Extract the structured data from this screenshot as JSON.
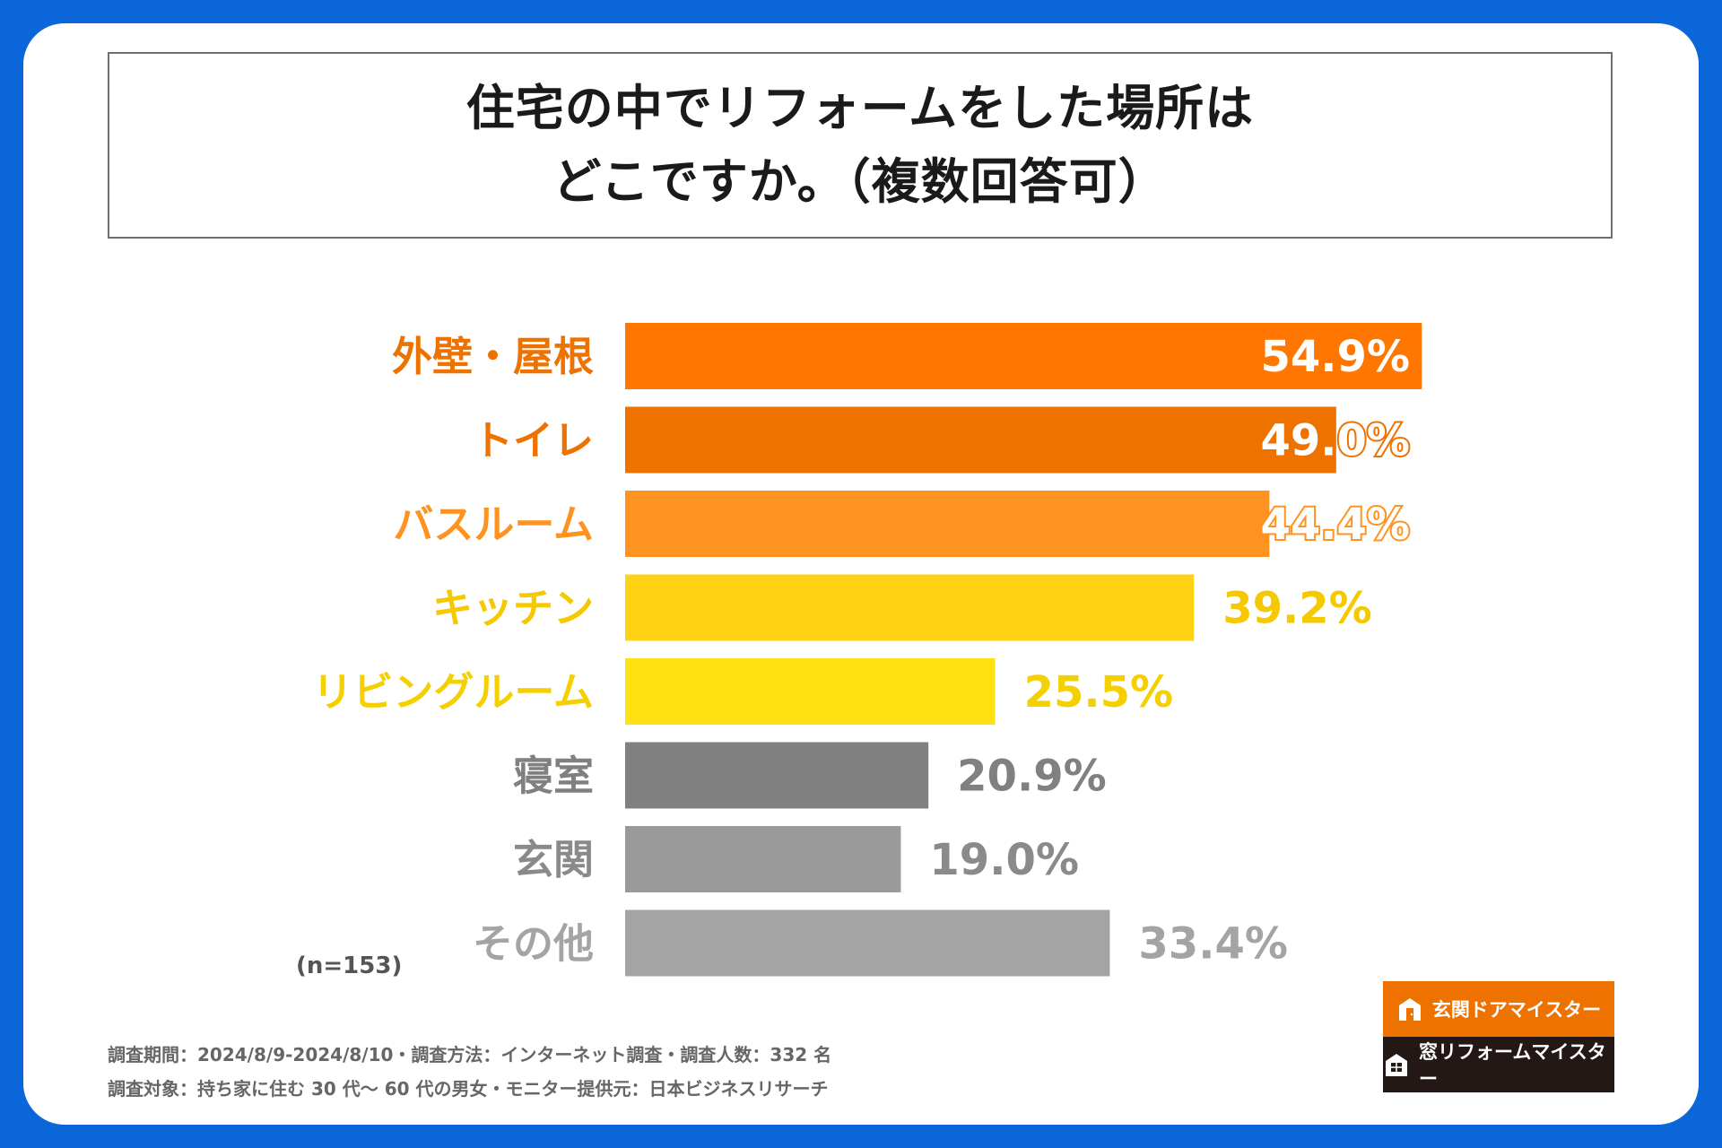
{
  "title": {
    "line1": "住宅の中でリフォームをした場所は",
    "line2": "どこですか。（複数回答可）"
  },
  "chart_data": {
    "type": "bar",
    "orientation": "horizontal",
    "title": "住宅の中でリフォームをした場所はどこですか。（複数回答可）",
    "xlim": [
      0,
      60
    ],
    "categories": [
      "外壁・屋根",
      "トイレ",
      "バスルーム",
      "キッチン",
      "リビングルーム",
      "寝室",
      "玄関",
      "その他"
    ],
    "values": [
      54.9,
      49.0,
      44.4,
      39.2,
      25.5,
      20.9,
      19.0,
      33.4
    ],
    "value_labels": [
      "54.9%",
      "49.0%",
      "44.4%",
      "39.2%",
      "25.5%",
      "20.9%",
      "19.0%",
      "33.4%"
    ],
    "bar_colors": [
      "#FF7700",
      "#EE7200",
      "#FF9322",
      "#FFD314",
      "#FFE114",
      "#808080",
      "#9A9A9A",
      "#A4A4A4"
    ],
    "label_colors": [
      "#EE7200",
      "#EE7200",
      "#FF9322",
      "#F5C800",
      "#F5D000",
      "#808080",
      "#8A8A8A",
      "#A4A4A4"
    ],
    "n_note": "(n=153)"
  },
  "footer": {
    "line1": "調査期間：2024/8/9-2024/8/10・調査方法：インターネット調査・調査人数：332 名",
    "line2": "調査対象：持ち家に住む 30 代～ 60 代の男女・モニター提供元：日本ビジネスリサーチ"
  },
  "logos": {
    "door": "玄関ドアマイスター",
    "window": "窓リフォームマイスター",
    "door_color": "#EE7200",
    "window_color": "#231815"
  }
}
